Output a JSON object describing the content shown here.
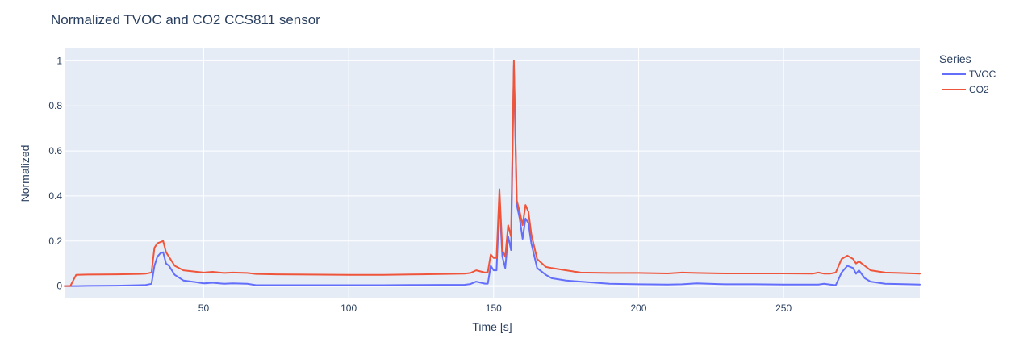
{
  "chart_data": {
    "type": "line",
    "title": "Normalized TVOC and CO2 CCS811 sensor",
    "xlabel": "Time [s]",
    "ylabel": "Normalized",
    "xlim": [
      2,
      297
    ],
    "ylim": [
      -0.055,
      1.055
    ],
    "xticks": [
      50,
      100,
      150,
      200,
      250
    ],
    "yticks": [
      0,
      0.2,
      0.4,
      0.6,
      0.8,
      1
    ],
    "ytick_labels": [
      "0",
      "0.2",
      "0.4",
      "0.6",
      "0.8",
      "1"
    ],
    "grid": true,
    "legend": {
      "title": "Series",
      "position": "top-right, outside plot"
    },
    "colors": {
      "plot_bg": "#e5ecf6",
      "grid": "#ffffff",
      "text": "#2a3f5f"
    },
    "series": [
      {
        "name": "TVOC",
        "color": "#636efa",
        "x": [
          2,
          4,
          6,
          10,
          20,
          28,
          30,
          32,
          33,
          34,
          35,
          36,
          37,
          38,
          40,
          43,
          47,
          50,
          53,
          57,
          60,
          65,
          68,
          75,
          100,
          112,
          125,
          140,
          142,
          144,
          147,
          148,
          149,
          150,
          151,
          152,
          153,
          154,
          155,
          156,
          157,
          158,
          159,
          160,
          161,
          162,
          163,
          165,
          168,
          170,
          175,
          180,
          190,
          200,
          210,
          215,
          220,
          230,
          240,
          250,
          260,
          262,
          264,
          266,
          268,
          270,
          272,
          274,
          275,
          276,
          278,
          280,
          285,
          290,
          297
        ],
        "y": [
          0.0,
          0.0,
          0.0,
          0.001,
          0.002,
          0.004,
          0.005,
          0.01,
          0.09,
          0.13,
          0.145,
          0.15,
          0.1,
          0.09,
          0.05,
          0.025,
          0.018,
          0.012,
          0.015,
          0.01,
          0.012,
          0.01,
          0.004,
          0.004,
          0.004,
          0.004,
          0.005,
          0.006,
          0.009,
          0.02,
          0.011,
          0.011,
          0.09,
          0.07,
          0.07,
          0.38,
          0.13,
          0.08,
          0.22,
          0.16,
          0.98,
          0.36,
          0.3,
          0.21,
          0.3,
          0.28,
          0.19,
          0.08,
          0.05,
          0.035,
          0.025,
          0.02,
          0.01,
          0.008,
          0.007,
          0.008,
          0.012,
          0.008,
          0.008,
          0.007,
          0.007,
          0.007,
          0.01,
          0.007,
          0.004,
          0.06,
          0.09,
          0.08,
          0.055,
          0.07,
          0.035,
          0.02,
          0.01,
          0.009,
          0.007
        ]
      },
      {
        "name": "CO2",
        "color": "#ef553b",
        "x": [
          2,
          4,
          6,
          10,
          20,
          28,
          30,
          32,
          33,
          34,
          35,
          36,
          37,
          38,
          40,
          43,
          47,
          50,
          53,
          57,
          60,
          65,
          68,
          75,
          100,
          112,
          125,
          140,
          142,
          144,
          147,
          148,
          149,
          150,
          151,
          152,
          153,
          154,
          155,
          156,
          157,
          158,
          159,
          160,
          161,
          162,
          163,
          165,
          168,
          170,
          175,
          180,
          190,
          200,
          210,
          215,
          220,
          230,
          240,
          250,
          260,
          262,
          264,
          266,
          268,
          270,
          272,
          274,
          275,
          276,
          278,
          280,
          285,
          290,
          297
        ],
        "y": [
          0.0,
          0.0,
          0.05,
          0.051,
          0.052,
          0.054,
          0.055,
          0.06,
          0.17,
          0.19,
          0.195,
          0.2,
          0.15,
          0.13,
          0.09,
          0.07,
          0.064,
          0.06,
          0.063,
          0.058,
          0.06,
          0.058,
          0.054,
          0.052,
          0.05,
          0.05,
          0.052,
          0.055,
          0.058,
          0.07,
          0.06,
          0.062,
          0.14,
          0.125,
          0.125,
          0.43,
          0.16,
          0.13,
          0.27,
          0.22,
          1.0,
          0.38,
          0.33,
          0.27,
          0.36,
          0.33,
          0.23,
          0.12,
          0.085,
          0.08,
          0.07,
          0.06,
          0.058,
          0.058,
          0.056,
          0.06,
          0.058,
          0.056,
          0.056,
          0.056,
          0.055,
          0.06,
          0.055,
          0.055,
          0.06,
          0.12,
          0.135,
          0.12,
          0.1,
          0.11,
          0.09,
          0.07,
          0.06,
          0.058,
          0.055
        ]
      }
    ]
  }
}
